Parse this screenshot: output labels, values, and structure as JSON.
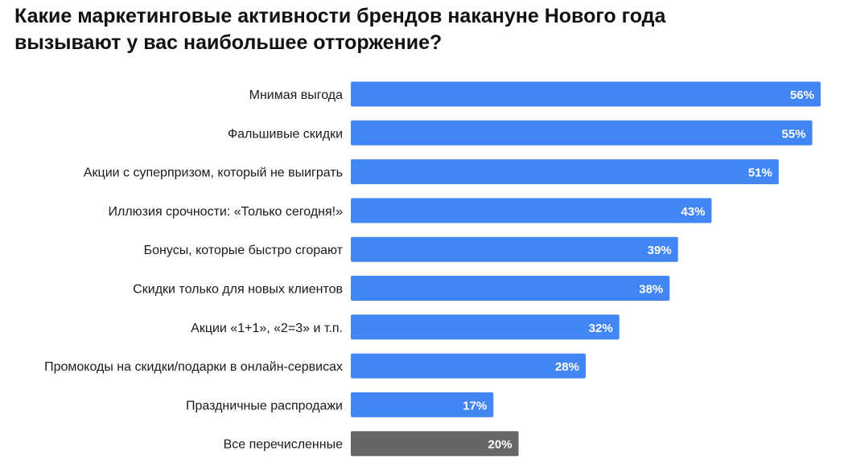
{
  "chart_data": {
    "type": "bar",
    "orientation": "horizontal",
    "title_lines": [
      "Какие маркетинговые активности брендов накануне Нового года",
      "вызывают у вас наибольшее отторжение?"
    ],
    "categories": [
      "Мнимая выгода",
      "Фальшивые скидки",
      "Акции с суперпризом, который не выиграть",
      "Иллюзия срочности: «Только сегодня!»",
      "Бонусы, которые быстро сгорают",
      "Скидки только для новых клиентов",
      "Акции «1+1», «2=3» и т.п.",
      "Промокоды на скидки/подарки в онлайн-сервисах",
      "Праздничные распродажи",
      "Все перечисленные"
    ],
    "values": [
      56,
      55,
      51,
      43,
      39,
      38,
      32,
      28,
      17,
      20
    ],
    "value_labels": [
      "56%",
      "55%",
      "51%",
      "43%",
      "39%",
      "38%",
      "32%",
      "28%",
      "17%",
      "20%"
    ],
    "bar_colors": [
      "#4285f4",
      "#4285f4",
      "#4285f4",
      "#4285f4",
      "#4285f4",
      "#4285f4",
      "#4285f4",
      "#4285f4",
      "#4285f4",
      "#666666"
    ],
    "xlim": [
      0,
      56
    ],
    "xlabel": "",
    "ylabel": "",
    "grid": false,
    "legend": "none"
  }
}
